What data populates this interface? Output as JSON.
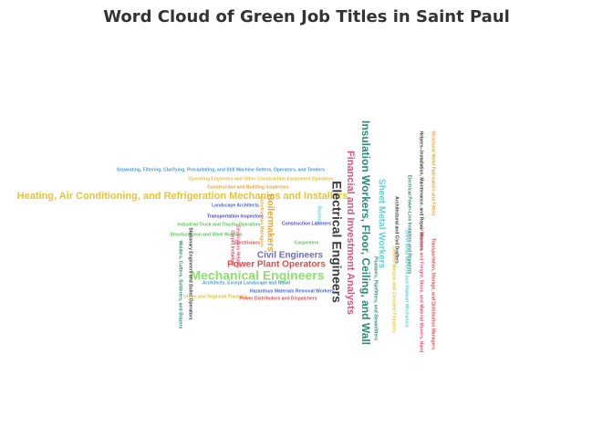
{
  "chart_data": {
    "type": "wordcloud",
    "title": "Word Cloud of Green Job Titles in Saint Paul",
    "words": [
      {
        "text": "Heating, Air Conditioning, and Refrigeration Mechanics and Installers",
        "weight": 10,
        "color": "#e8c33a"
      },
      {
        "text": "Mechanical Engineers",
        "weight": 14,
        "color": "#8be26a"
      },
      {
        "text": "Electrical Engineers",
        "weight": 14,
        "color": "#3a3a3a"
      },
      {
        "text": "Insulation Workers, Floor, Ceiling, and Wall",
        "weight": 11,
        "color": "#2e8b7a"
      },
      {
        "text": "Financial and Investment Analysts",
        "weight": 11,
        "color": "#e0507a"
      },
      {
        "text": "Sheet Metal Workers",
        "weight": 10,
        "color": "#5fd3d6"
      },
      {
        "text": "Power Plant Operators",
        "weight": 10,
        "color": "#e84a4a"
      },
      {
        "text": "Civil Engineers",
        "weight": 10,
        "color": "#6a6ad8"
      },
      {
        "text": "Boilermakers",
        "weight": 9,
        "color": "#e8a63a"
      },
      {
        "text": "Separating, Filtering, Clarifying, Precipitating, and Still Machine Setters, Operators, and Tenders",
        "weight": 4,
        "color": "#4a9ed8"
      },
      {
        "text": "Operating Engineers and Other Construction Equipment Operators",
        "weight": 4,
        "color": "#e8c33a"
      },
      {
        "text": "Construction and Building Inspectors",
        "weight": 4,
        "color": "#e8a63a"
      },
      {
        "text": "Landscape Architects",
        "weight": 4,
        "color": "#4a6ad8"
      },
      {
        "text": "Transportation Inspectors",
        "weight": 4,
        "color": "#4a4ad8"
      },
      {
        "text": "Industrial Truck and Tractor Operators",
        "weight": 4,
        "color": "#5fc45f"
      },
      {
        "text": "Construction Laborers",
        "weight": 4,
        "color": "#4a4ad8"
      },
      {
        "text": "Structural Iron and Steel Workers",
        "weight": 4,
        "color": "#5fc45f"
      },
      {
        "text": "Electricians",
        "weight": 4,
        "color": "#e84a4a"
      },
      {
        "text": "Carpenters",
        "weight": 4,
        "color": "#5fc45f"
      },
      {
        "text": "Architects, Except Landscape and Naval",
        "weight": 4,
        "color": "#4a9ed8"
      },
      {
        "text": "Hazardous Materials Removal Workers",
        "weight": 4,
        "color": "#4a6ad8"
      },
      {
        "text": "Urban and Regional Planners",
        "weight": 4,
        "color": "#e8c33a"
      },
      {
        "text": "Power Distributors and Dispatchers",
        "weight": 4,
        "color": "#e84a4a"
      },
      {
        "text": "Welders, Cutters, Solderers, and Brazers",
        "weight": 4,
        "color": "#2e8b7a"
      },
      {
        "text": "Stationary Engineers and Boiler Operators",
        "weight": 4,
        "color": "#3a3a3a"
      },
      {
        "text": "Plumbers, Pipefitters, and Steamfitters",
        "weight": 4,
        "color": "#2e8b7a"
      },
      {
        "text": "Architectural and Civil Drafters",
        "weight": 4,
        "color": "#3a3a3a"
      },
      {
        "text": "Electrical Power-Line Installers and Repairers",
        "weight": 4,
        "color": "#2e8b7a"
      },
      {
        "text": "Helpers--Installation, Maintenance, and Repair Workers",
        "weight": 4,
        "color": "#3a3a3a"
      },
      {
        "text": "Structural Metal Fabricators and Fitters",
        "weight": 4,
        "color": "#e8a63a"
      },
      {
        "text": "Transportation, Storage, and Distribution Managers",
        "weight": 4,
        "color": "#e84a4a"
      },
      {
        "text": "Cement Masons and Concrete Finishers",
        "weight": 4,
        "color": "#e8c33a"
      },
      {
        "text": "Sheet Metal Workers and Stalwart Mechanics",
        "weight": 4,
        "color": "#5fd3d6"
      },
      {
        "text": "Laborers and Freight, Stock, and Material Movers, Hand",
        "weight": 4,
        "color": "#e0507a"
      },
      {
        "text": "Roofers",
        "weight": 4,
        "color": "#5fd3d6"
      },
      {
        "text": "Carpet Installers",
        "weight": 4,
        "color": "#e84a4a"
      },
      {
        "text": "Construction Managers",
        "weight": 4,
        "color": "#e8a63a"
      },
      {
        "text": "Electricians Helpers",
        "weight": 4,
        "color": "#e0507a"
      }
    ]
  }
}
